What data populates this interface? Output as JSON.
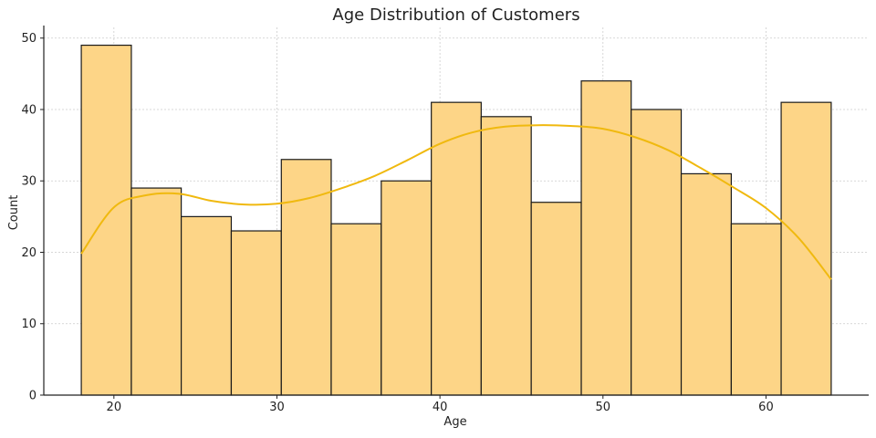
{
  "chart_data": {
    "type": "bar",
    "title": "Age Distribution of Customers",
    "xlabel": "Age",
    "ylabel": "Count",
    "xlim": [
      15.7,
      66.3
    ],
    "ylim": [
      0,
      51.5
    ],
    "bins": [
      {
        "start": 18.0,
        "end": 21.07,
        "count": 49
      },
      {
        "start": 21.07,
        "end": 24.13,
        "count": 29
      },
      {
        "start": 24.13,
        "end": 27.2,
        "count": 25
      },
      {
        "start": 27.2,
        "end": 30.27,
        "count": 23
      },
      {
        "start": 30.27,
        "end": 33.33,
        "count": 33
      },
      {
        "start": 33.33,
        "end": 36.4,
        "count": 24
      },
      {
        "start": 36.4,
        "end": 39.47,
        "count": 30
      },
      {
        "start": 39.47,
        "end": 42.53,
        "count": 41
      },
      {
        "start": 42.53,
        "end": 45.6,
        "count": 39
      },
      {
        "start": 45.6,
        "end": 48.67,
        "count": 27
      },
      {
        "start": 48.67,
        "end": 51.73,
        "count": 44
      },
      {
        "start": 51.73,
        "end": 54.8,
        "count": 40
      },
      {
        "start": 54.8,
        "end": 57.87,
        "count": 31
      },
      {
        "start": 57.87,
        "end": 60.93,
        "count": 24
      },
      {
        "start": 60.93,
        "end": 64.0,
        "count": 41
      }
    ],
    "kde": {
      "x": [
        18,
        20,
        22,
        24,
        26,
        28,
        30,
        32,
        34,
        36,
        38,
        40,
        42,
        44,
        46,
        48,
        50,
        52,
        54,
        56,
        58,
        60,
        62,
        64
      ],
      "y": [
        19.8,
        26.3,
        28.0,
        28.2,
        27.2,
        26.7,
        26.8,
        27.6,
        29.0,
        30.7,
        32.9,
        35.2,
        36.8,
        37.6,
        37.8,
        37.7,
        37.3,
        36.1,
        34.3,
        31.8,
        29.1,
        26.2,
        22.0,
        16.2
      ]
    },
    "xticks": [
      20,
      30,
      40,
      50,
      60
    ],
    "yticks": [
      0,
      10,
      20,
      30,
      40,
      50
    ],
    "grid": true,
    "colors": {
      "bar_fill": "#FDD587",
      "bar_edge": "#1A1A1A",
      "kde_line": "#F0B90F",
      "grid": "#CCCCCC"
    }
  }
}
